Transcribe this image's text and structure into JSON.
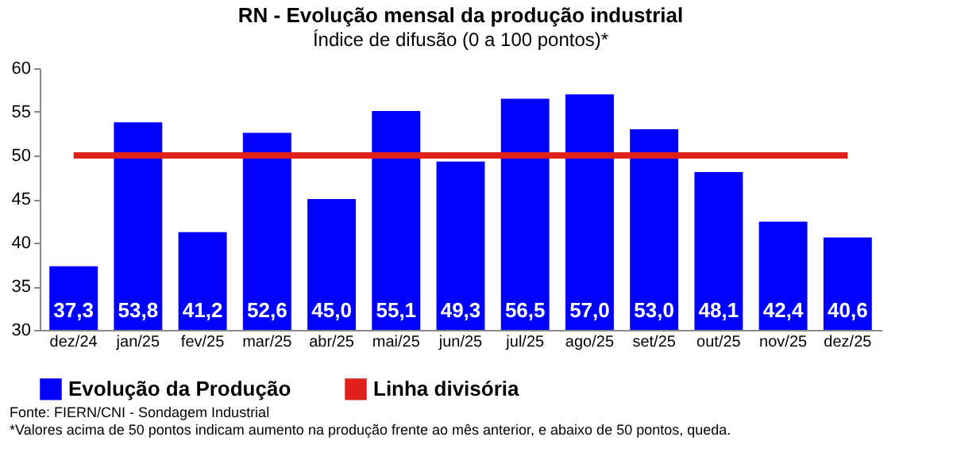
{
  "chart_data": {
    "type": "bar",
    "title": "RN - Evolução mensal da produção industrial",
    "subtitle": "Índice de difusão (0 a 100 pontos)*",
    "categories": [
      "dez/24",
      "jan/25",
      "fev/25",
      "mar/25",
      "abr/25",
      "mai/25",
      "jun/25",
      "jul/25",
      "ago/25",
      "set/25",
      "out/25",
      "nov/25",
      "dez/25"
    ],
    "series": [
      {
        "name": "Evolução da Produção",
        "color": "#0000ff",
        "values": [
          37.3,
          53.8,
          41.2,
          52.6,
          45.0,
          55.1,
          49.3,
          56.5,
          57.0,
          53.0,
          48.1,
          42.4,
          40.6
        ],
        "value_labels": [
          "37,3",
          "53,8",
          "41,2",
          "52,6",
          "45,0",
          "55,1",
          "49,3",
          "56,5",
          "57,0",
          "53,0",
          "48,1",
          "42,4",
          "40,6"
        ]
      },
      {
        "name": "Linha divisória",
        "type": "line",
        "color": "#e0201b",
        "values": [
          50,
          50,
          50,
          50,
          50,
          50,
          50,
          50,
          50,
          50,
          50,
          50,
          50
        ]
      }
    ],
    "ylim": [
      30,
      60
    ],
    "yticks": [
      30,
      35,
      40,
      45,
      50,
      55,
      60
    ],
    "grid": false,
    "legend": "bottom",
    "annotations": [
      "Fonte: FIERN/CNI - Sondagem Industrial",
      "*Valores acima de 50 pontos indicam aumento na produção frente ao mês anterior, e abaixo de 50 pontos, queda."
    ]
  }
}
